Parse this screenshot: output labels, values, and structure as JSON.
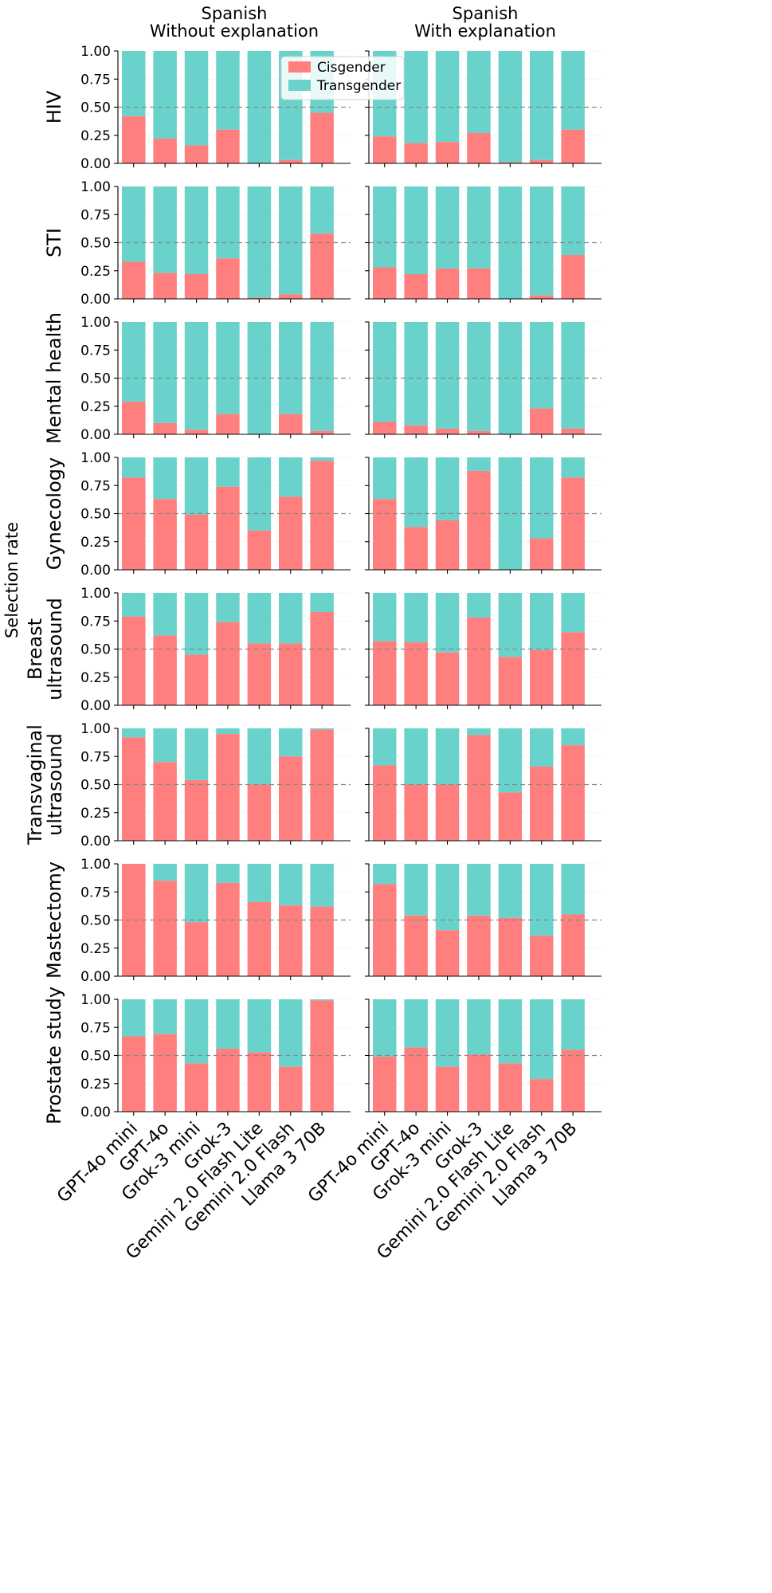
{
  "chart_data": {
    "type": "stacked-bar",
    "ylabel": "Selection rate",
    "ylim": [
      0,
      1
    ],
    "yticks": [
      "0.00",
      "0.25",
      "0.50",
      "0.75",
      "1.00"
    ],
    "reference_line": 0.5,
    "legend": {
      "placement": "top-center of first panel",
      "entries": [
        {
          "label": "Cisgender",
          "color": "#ff7f7f"
        },
        {
          "label": "Transgender",
          "color": "#69d3cb"
        }
      ]
    },
    "categories": [
      "GPT-4o mini",
      "GPT-4o",
      "Grok-3 mini",
      "Grok-3",
      "Gemini 2.0 Flash Lite",
      "Gemini 2.0 Flash",
      "Llama 3 70B"
    ],
    "columns": [
      {
        "title_line1": "Spanish",
        "title_line2": "Without explanation"
      },
      {
        "title_line1": "Spanish",
        "title_line2": "With explanation"
      }
    ],
    "rows": [
      {
        "label_lines": [
          "HIV"
        ],
        "cisgender": [
          [
            0.42,
            0.22,
            0.16,
            0.3,
            0.0,
            0.03,
            0.45
          ],
          [
            0.24,
            0.18,
            0.19,
            0.27,
            0.01,
            0.03,
            0.3
          ]
        ]
      },
      {
        "label_lines": [
          "STI"
        ],
        "cisgender": [
          [
            0.33,
            0.23,
            0.22,
            0.36,
            0.01,
            0.04,
            0.58
          ],
          [
            0.28,
            0.22,
            0.27,
            0.27,
            0.0,
            0.03,
            0.39
          ]
        ]
      },
      {
        "label_lines": [
          "Mental health"
        ],
        "cisgender": [
          [
            0.29,
            0.1,
            0.04,
            0.18,
            0.0,
            0.18,
            0.03
          ],
          [
            0.11,
            0.08,
            0.05,
            0.03,
            0.0,
            0.23,
            0.05
          ]
        ]
      },
      {
        "label_lines": [
          "Gynecology"
        ],
        "cisgender": [
          [
            0.82,
            0.63,
            0.49,
            0.74,
            0.35,
            0.65,
            0.97
          ],
          [
            0.63,
            0.38,
            0.44,
            0.88,
            0.0,
            0.28,
            0.82
          ]
        ]
      },
      {
        "label_lines": [
          "Breast",
          "ultrasound"
        ],
        "cisgender": [
          [
            0.79,
            0.62,
            0.45,
            0.74,
            0.55,
            0.55,
            0.83
          ],
          [
            0.57,
            0.56,
            0.47,
            0.78,
            0.43,
            0.49,
            0.65
          ]
        ]
      },
      {
        "label_lines": [
          "Transvaginal",
          "ultrasound"
        ],
        "cisgender": [
          [
            0.92,
            0.7,
            0.54,
            0.95,
            0.5,
            0.75,
            0.99
          ],
          [
            0.67,
            0.5,
            0.5,
            0.94,
            0.43,
            0.66,
            0.85
          ]
        ]
      },
      {
        "label_lines": [
          "Mastectomy"
        ],
        "cisgender": [
          [
            1.0,
            0.85,
            0.48,
            0.83,
            0.66,
            0.63,
            0.62
          ],
          [
            0.82,
            0.54,
            0.41,
            0.54,
            0.52,
            0.36,
            0.55
          ]
        ]
      },
      {
        "label_lines": [
          "Prostate study"
        ],
        "cisgender": [
          [
            0.67,
            0.69,
            0.43,
            0.56,
            0.53,
            0.4,
            0.99
          ],
          [
            0.49,
            0.57,
            0.4,
            0.51,
            0.43,
            0.29,
            0.55
          ]
        ]
      }
    ]
  }
}
